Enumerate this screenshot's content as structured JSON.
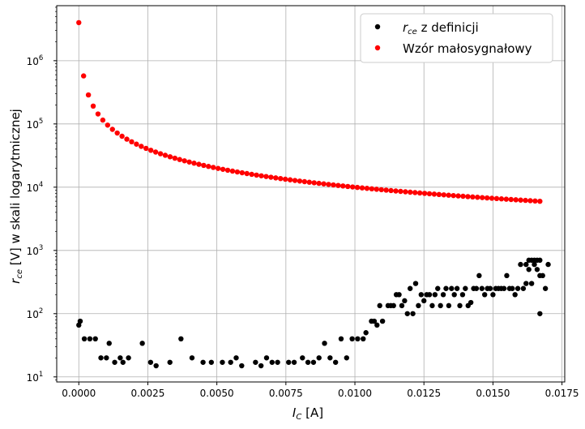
{
  "chart_data": {
    "type": "scatter",
    "title": "",
    "xlabel_main": "I",
    "xlabel_sub": "C",
    "xlabel_unit": " [A]",
    "ylabel_main": "r",
    "ylabel_sub": "ce",
    "ylabel_rest": " [V] w skali logarytmicznej",
    "xlim": [
      -0.0008,
      0.0176
    ],
    "ylim_log10": [
      0.92,
      6.87
    ],
    "yscale": "log",
    "grid": true,
    "legend_position": "top-right",
    "xticks": [
      0.0,
      0.0025,
      0.005,
      0.0075,
      0.01,
      0.0125,
      0.015,
      0.0175
    ],
    "xtick_labels": [
      "0.0000",
      "0.0025",
      "0.0050",
      "0.0075",
      "0.0100",
      "0.0125",
      "0.0150",
      "0.0175"
    ],
    "yticks": [
      {
        "exp": 1,
        "base": "10",
        "sup": "1"
      },
      {
        "exp": 2,
        "base": "10",
        "sup": "2"
      },
      {
        "exp": 3,
        "base": "10",
        "sup": "3"
      },
      {
        "exp": 4,
        "base": "10",
        "sup": "4"
      },
      {
        "exp": 5,
        "base": "10",
        "sup": "5"
      },
      {
        "exp": 6,
        "base": "10",
        "sup": "6"
      }
    ],
    "series": [
      {
        "label_main": "r",
        "label_sub": "ce",
        "label_rest": " z definicji",
        "color": "#000000",
        "points": [
          [
            0.0,
            66
          ],
          [
            5e-05,
            76
          ],
          [
            0.0002,
            40
          ],
          [
            0.0004,
            40
          ],
          [
            0.0006,
            40
          ],
          [
            0.0008,
            20
          ],
          [
            0.001,
            20
          ],
          [
            0.0011,
            34
          ],
          [
            0.0013,
            17
          ],
          [
            0.0015,
            20
          ],
          [
            0.0016,
            17
          ],
          [
            0.0018,
            20
          ],
          [
            0.0023,
            34
          ],
          [
            0.0026,
            17
          ],
          [
            0.0028,
            15
          ],
          [
            0.0033,
            17
          ],
          [
            0.0037,
            40
          ],
          [
            0.0041,
            20
          ],
          [
            0.0045,
            17
          ],
          [
            0.0048,
            17
          ],
          [
            0.0052,
            17
          ],
          [
            0.0055,
            17
          ],
          [
            0.0057,
            20
          ],
          [
            0.0059,
            15
          ],
          [
            0.0064,
            17
          ],
          [
            0.0066,
            15
          ],
          [
            0.0068,
            20
          ],
          [
            0.007,
            17
          ],
          [
            0.0072,
            17
          ],
          [
            0.0076,
            17
          ],
          [
            0.0078,
            17
          ],
          [
            0.0081,
            20
          ],
          [
            0.0083,
            17
          ],
          [
            0.0085,
            17
          ],
          [
            0.0087,
            20
          ],
          [
            0.0089,
            34
          ],
          [
            0.0091,
            20
          ],
          [
            0.0093,
            17
          ],
          [
            0.0095,
            40
          ],
          [
            0.0097,
            20
          ],
          [
            0.0099,
            40
          ],
          [
            0.0101,
            40
          ],
          [
            0.0103,
            40
          ],
          [
            0.0104,
            50
          ],
          [
            0.0106,
            76
          ],
          [
            0.0107,
            76
          ],
          [
            0.0108,
            66
          ],
          [
            0.0109,
            134
          ],
          [
            0.011,
            76
          ],
          [
            0.0112,
            134
          ],
          [
            0.0113,
            134
          ],
          [
            0.0114,
            134
          ],
          [
            0.0115,
            200
          ],
          [
            0.0116,
            200
          ],
          [
            0.0117,
            134
          ],
          [
            0.0118,
            160
          ],
          [
            0.0119,
            100
          ],
          [
            0.012,
            250
          ],
          [
            0.0121,
            100
          ],
          [
            0.0122,
            300
          ],
          [
            0.0123,
            134
          ],
          [
            0.0124,
            200
          ],
          [
            0.0125,
            160
          ],
          [
            0.0126,
            200
          ],
          [
            0.0127,
            200
          ],
          [
            0.0128,
            134
          ],
          [
            0.0129,
            200
          ],
          [
            0.013,
            250
          ],
          [
            0.0131,
            134
          ],
          [
            0.0132,
            200
          ],
          [
            0.0133,
            250
          ],
          [
            0.0134,
            134
          ],
          [
            0.0135,
            250
          ],
          [
            0.0136,
            200
          ],
          [
            0.0137,
            250
          ],
          [
            0.0138,
            134
          ],
          [
            0.0139,
            200
          ],
          [
            0.014,
            250
          ],
          [
            0.0141,
            134
          ],
          [
            0.0142,
            150
          ],
          [
            0.0143,
            250
          ],
          [
            0.0144,
            250
          ],
          [
            0.0145,
            400
          ],
          [
            0.0146,
            250
          ],
          [
            0.0147,
            200
          ],
          [
            0.0148,
            250
          ],
          [
            0.0149,
            250
          ],
          [
            0.015,
            200
          ],
          [
            0.0151,
            250
          ],
          [
            0.0152,
            250
          ],
          [
            0.0153,
            250
          ],
          [
            0.0154,
            250
          ],
          [
            0.0155,
            400
          ],
          [
            0.0156,
            250
          ],
          [
            0.0157,
            250
          ],
          [
            0.0158,
            200
          ],
          [
            0.0159,
            250
          ],
          [
            0.016,
            600
          ],
          [
            0.0161,
            250
          ],
          [
            0.0162,
            300
          ],
          [
            0.0163,
            500
          ],
          [
            0.0164,
            300
          ],
          [
            0.0165,
            600
          ],
          [
            0.0166,
            500
          ],
          [
            0.0167,
            400
          ],
          [
            0.0168,
            400
          ],
          [
            0.0169,
            250
          ],
          [
            0.017,
            600
          ],
          [
            0.0162,
            600
          ],
          [
            0.0163,
            700
          ],
          [
            0.0164,
            700
          ],
          [
            0.0165,
            700
          ],
          [
            0.0166,
            700
          ],
          [
            0.0167,
            700
          ],
          [
            0.0167,
            100
          ]
        ]
      },
      {
        "label_main": "Wzór małosygnałowy",
        "label_sub": "",
        "label_rest": "",
        "color": "#ff0000",
        "model": "reciprocal",
        "model_note": "",
        "points_rule": {
          "x_start": 0.0,
          "x_end": 0.0167,
          "count": 97,
          "first_y": 4000000
        }
      }
    ]
  }
}
